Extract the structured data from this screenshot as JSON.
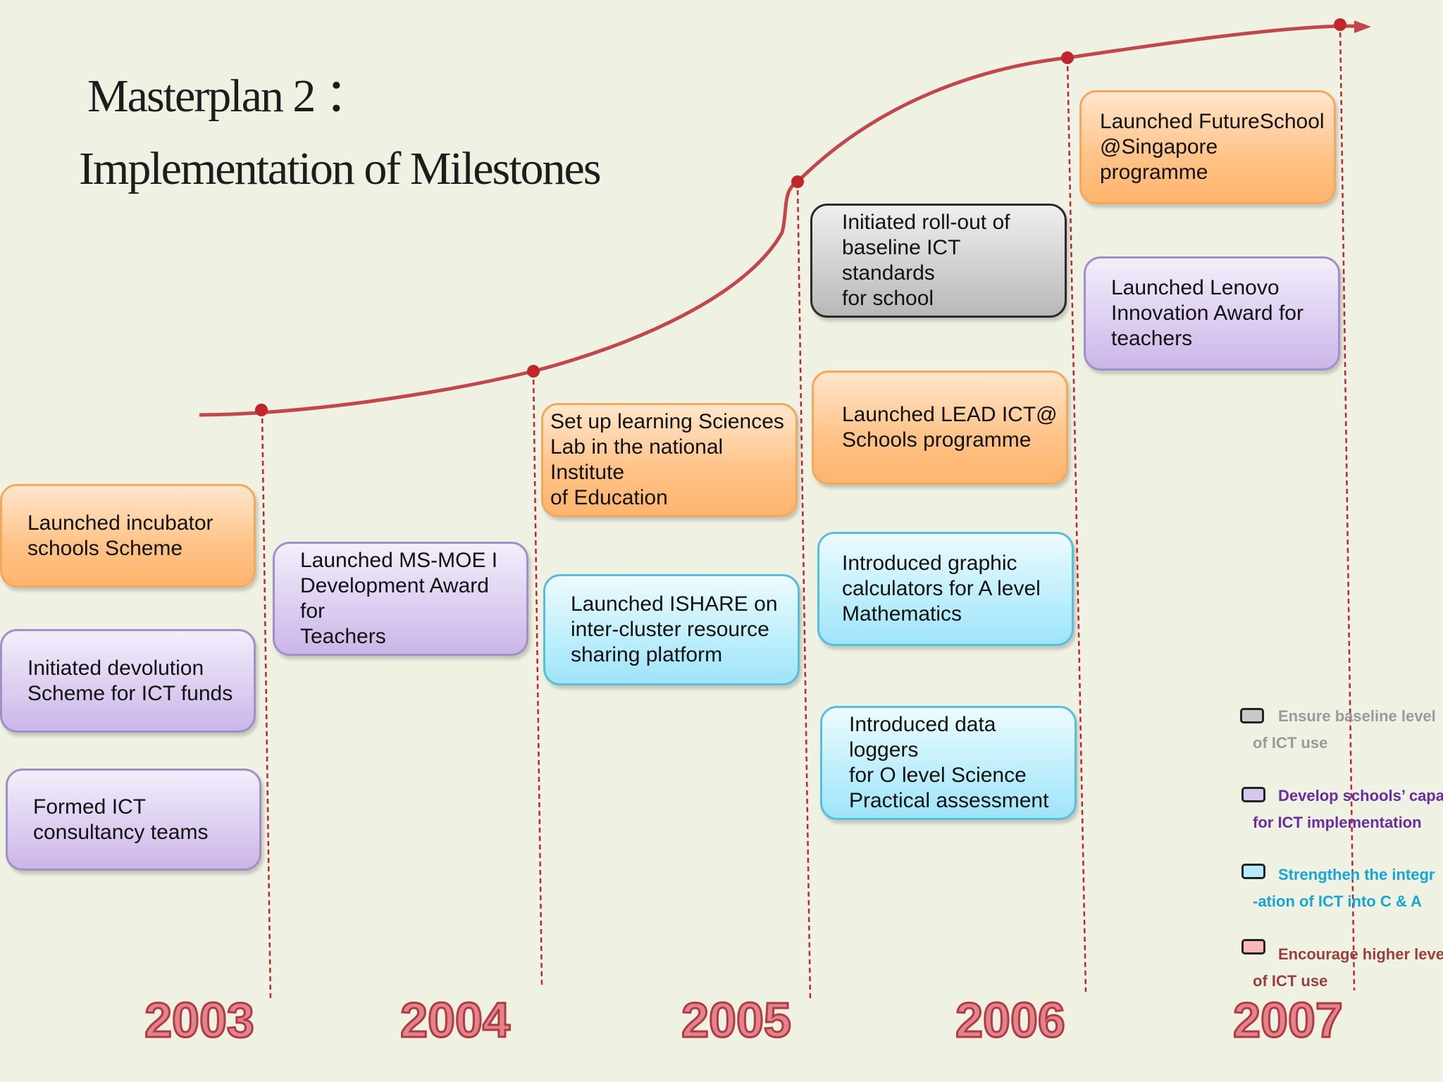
{
  "title": {
    "line1": "Masterplan 2 ：",
    "line2": "Implementation of  Milestones"
  },
  "years": [
    "2003",
    "2004",
    "2005",
    "2006",
    "2007"
  ],
  "milestones": {
    "y2003": [
      {
        "text": "Launched incubator\nschools Scheme",
        "category": "orange"
      },
      {
        "text": "Initiated devolution\nScheme for ICT funds",
        "category": "purple"
      },
      {
        "text": "Formed ICT\nconsultancy teams",
        "category": "purple"
      }
    ],
    "y2004": [
      {
        "text": "Launched MS-MOE I\nDevelopment Award for\nTeachers",
        "category": "purple"
      }
    ],
    "y2004b": [
      {
        "text": "Set up learning Sciences\nLab in the national Institute\nof Education",
        "category": "orange"
      },
      {
        "text": "Launched ISHARE on\ninter-cluster resource\nsharing platform",
        "category": "cyan"
      }
    ],
    "y2005": [
      {
        "text": "Initiated roll-out of\nbaseline ICT standards\nfor school",
        "category": "grey"
      },
      {
        "text": "Launched LEAD ICT@\nSchools programme",
        "category": "orange"
      },
      {
        "text": "Introduced graphic\ncalculators for A level\nMathematics",
        "category": "cyan"
      },
      {
        "text": "Introduced data loggers\nfor O level Science\nPractical assessment",
        "category": "cyan"
      }
    ],
    "y2006": [
      {
        "text": "Launched FutureSchool\n@Singapore programme",
        "category": "orange"
      },
      {
        "text": "Launched Lenovo\nInnovation Award for\nteachers",
        "category": "purple"
      }
    ]
  },
  "legend": [
    {
      "text": "Ensure baseline level\nof ICT use",
      "color": "#9a9a9a",
      "swatch": "#c9c9c9"
    },
    {
      "text": "Develop schools’ capa\nfor ICT implementation",
      "color": "#6a2d9e",
      "swatch": "#d7c7ee"
    },
    {
      "text": "Strengthen the integr\n-ation of ICT into C & A",
      "color": "#14a6d6",
      "swatch": "#b4ecfb"
    },
    {
      "text": "Encourage higher level\nof ICT use",
      "color": "#9a3e3e",
      "swatch": "#f9b8b8"
    }
  ],
  "colors": {
    "curve": "#c0474c",
    "year_fill": "#e2858b",
    "year_stroke": "#b13b45"
  }
}
